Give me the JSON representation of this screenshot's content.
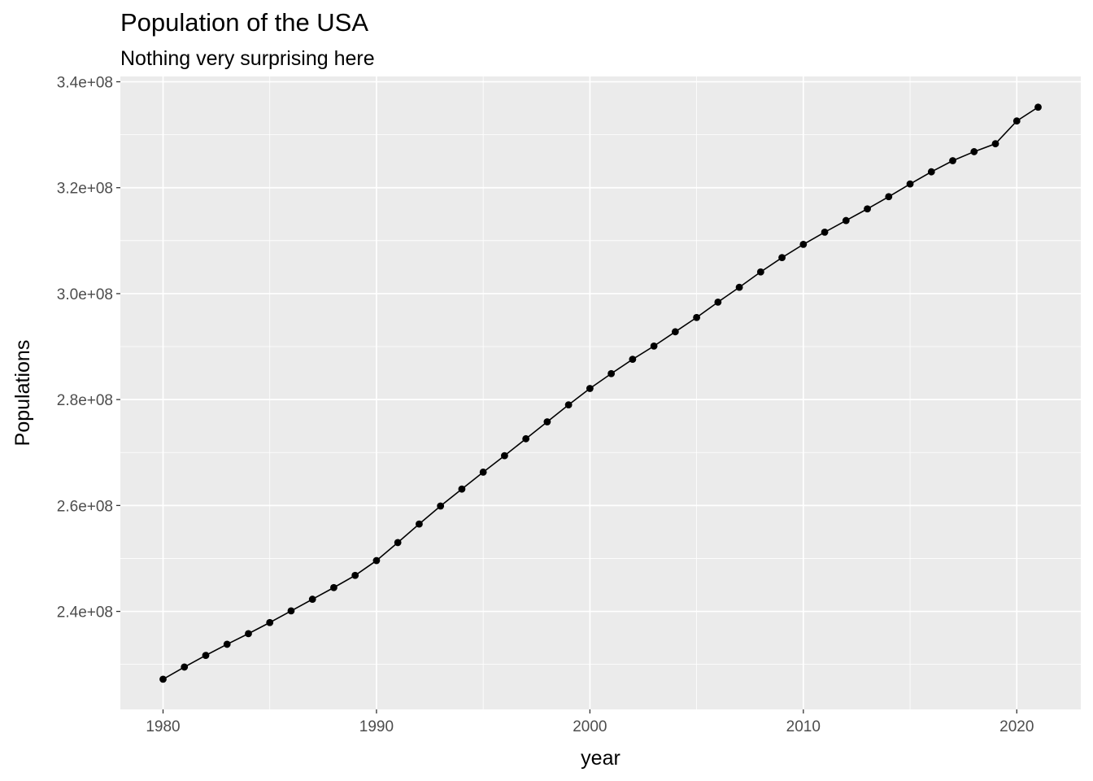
{
  "chart_data": {
    "type": "line",
    "title": "Population of the USA",
    "subtitle": "Nothing very surprising here",
    "xlabel": "year",
    "ylabel": "Populations",
    "xlim": [
      1978,
      2023
    ],
    "ylim": [
      221500000,
      341000000
    ],
    "x_ticks": [
      1980,
      1990,
      2000,
      2010,
      2020
    ],
    "x_tick_labels": [
      "1980",
      "1990",
      "2000",
      "2010",
      "2020"
    ],
    "y_ticks": [
      240000000,
      260000000,
      280000000,
      300000000,
      320000000,
      340000000
    ],
    "y_tick_labels": [
      "2.4e+08",
      "2.6e+08",
      "2.8e+08",
      "3.0e+08",
      "3.2e+08",
      "3.4e+08"
    ],
    "grid": true,
    "background": "#EBEBEB",
    "series": [
      {
        "color": "#000000",
        "markers": true,
        "x": [
          1980,
          1981,
          1982,
          1983,
          1984,
          1985,
          1986,
          1987,
          1988,
          1989,
          1990,
          1991,
          1992,
          1993,
          1994,
          1995,
          1996,
          1997,
          1998,
          1999,
          2000,
          2001,
          2002,
          2003,
          2004,
          2005,
          2006,
          2007,
          2008,
          2009,
          2010,
          2011,
          2012,
          2013,
          2014,
          2015,
          2016,
          2017,
          2018,
          2019,
          2020,
          2021
        ],
        "y": [
          227200000,
          229500000,
          231700000,
          233800000,
          235800000,
          237900000,
          240100000,
          242300000,
          244500000,
          246800000,
          249600000,
          253000000,
          256500000,
          259900000,
          263100000,
          266300000,
          269400000,
          272600000,
          275800000,
          279000000,
          282100000,
          284900000,
          287600000,
          290100000,
          292800000,
          295500000,
          298400000,
          301200000,
          304100000,
          306800000,
          309300000,
          311600000,
          313800000,
          316000000,
          318300000,
          320700000,
          323000000,
          325100000,
          326800000,
          328300000,
          332600000,
          335200000
        ]
      }
    ]
  }
}
